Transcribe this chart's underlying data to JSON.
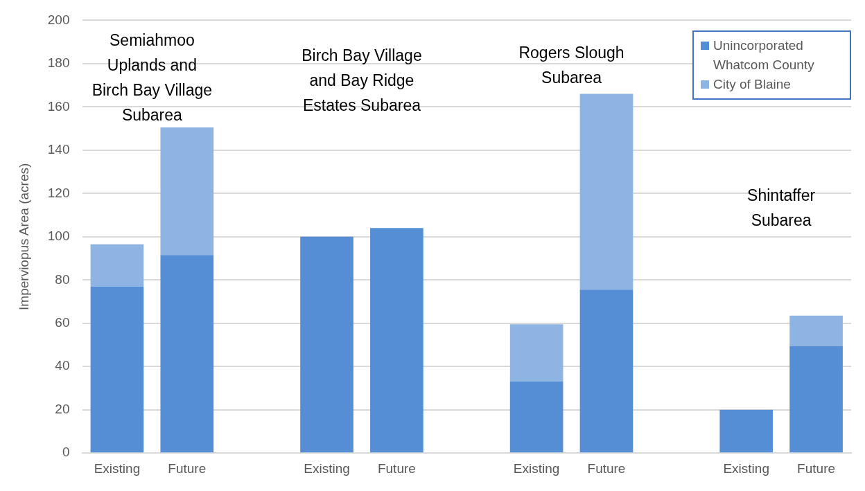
{
  "chart_data": {
    "type": "bar",
    "stacked": true,
    "ylabel": "Imperviopus Area (acres)",
    "categories": [
      "Existing",
      "Future",
      null,
      "Existing",
      "Future",
      null,
      "Existing",
      "Future",
      null,
      "Existing",
      "Future"
    ],
    "series": [
      {
        "name": "Unincorporated Whatcom County",
        "color": "#558ed5",
        "values": [
          77,
          91.5,
          null,
          100,
          104,
          null,
          33,
          75.5,
          null,
          20,
          49.5
        ]
      },
      {
        "name": "City of Blaine",
        "color": "#8eb4e3",
        "values": [
          19.5,
          59,
          null,
          null,
          null,
          null,
          26.5,
          90.5,
          null,
          null,
          14
        ]
      }
    ],
    "ylim": [
      0,
      200
    ],
    "yticks": [
      0,
      20,
      40,
      60,
      80,
      100,
      120,
      140,
      160,
      180,
      200
    ],
    "grid": "y",
    "legend": "top right",
    "annotations": [
      "Semiahmoo\nUplands and\nBirch Bay Village\nSubarea",
      "Birch Bay Village\nand Bay Ridge\nEstates Subarea",
      "Rogers Slough\nSubarea",
      "Shintaffer\nSubarea"
    ]
  }
}
